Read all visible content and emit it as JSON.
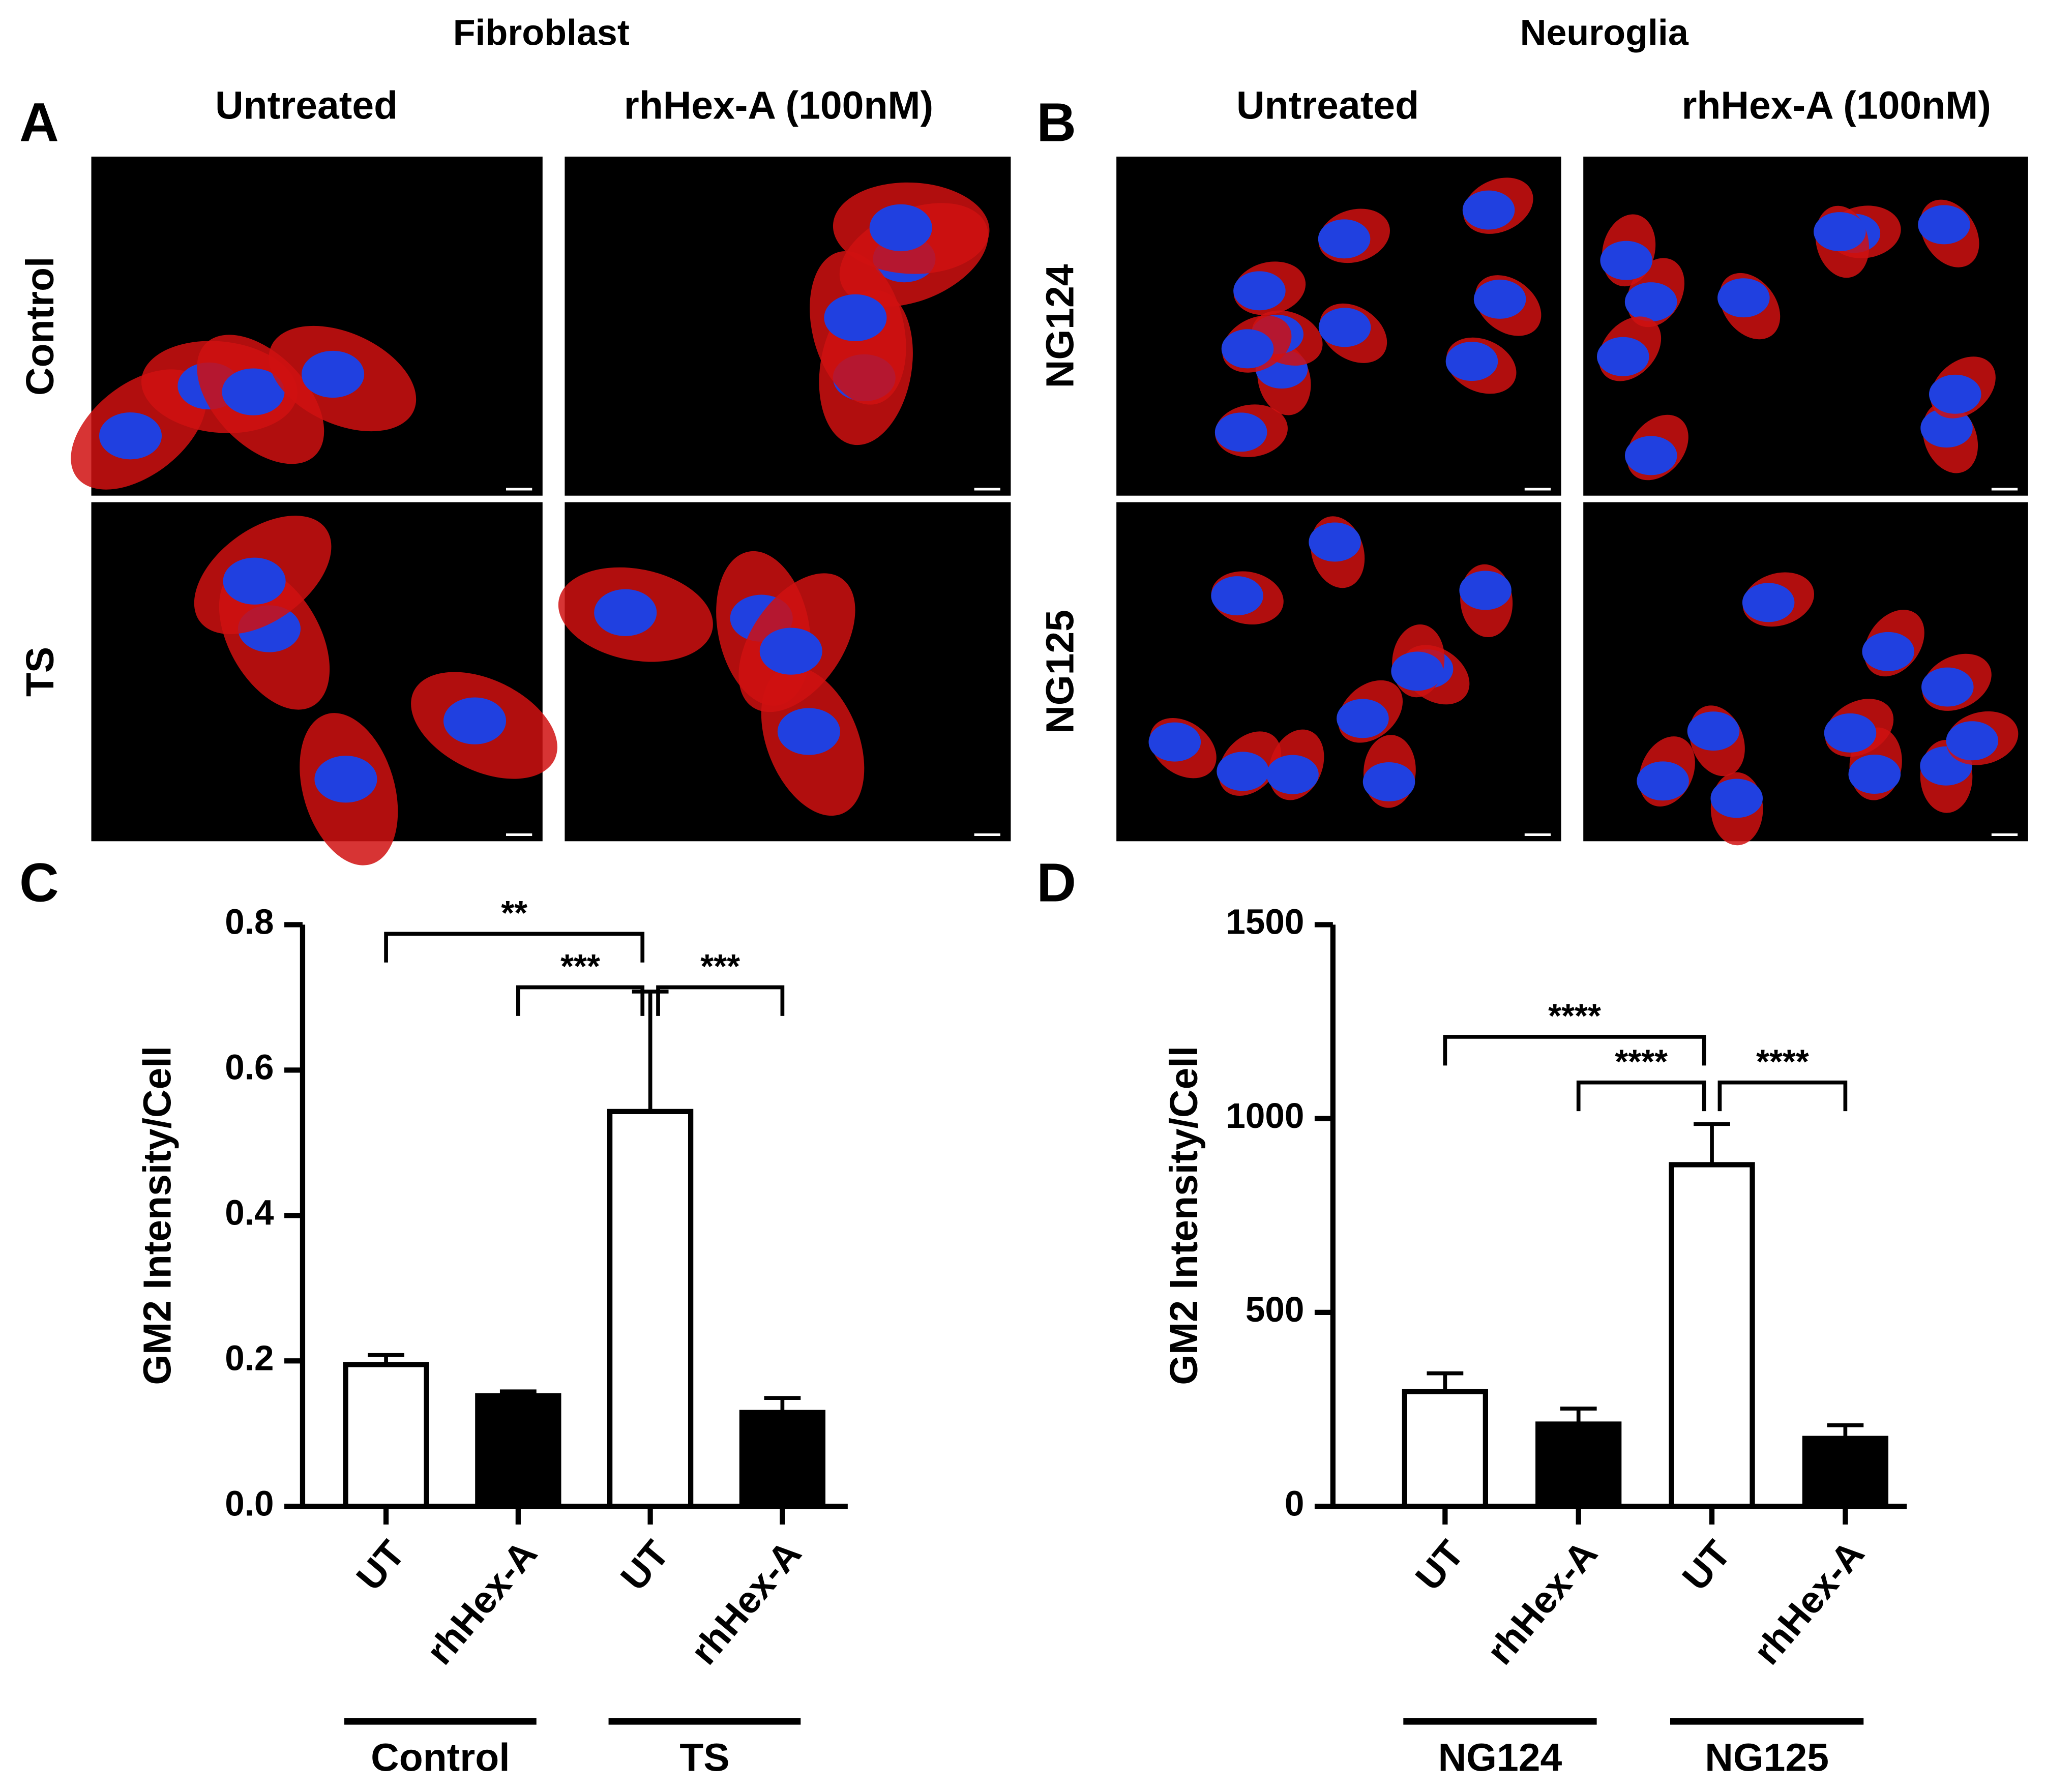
{
  "figure": {
    "col_groups": [
      "Fibroblast",
      "Neuroglia"
    ],
    "panel_letters": [
      "A",
      "B",
      "C",
      "D"
    ],
    "col_headers": [
      "Untreated",
      "rhHex-A (100nM)",
      "Untreated",
      "rhHex-A (100nM)"
    ],
    "row_labels": [
      "Control",
      "TS",
      "NG124",
      "NG125"
    ]
  },
  "chart_data": [
    {
      "type": "bar",
      "ylabel": "GM2 Intensity/Cell",
      "categories": [
        "UT",
        "rhHex-A",
        "UT",
        "rhHex-A"
      ],
      "values": [
        0.195,
        0.152,
        0.543,
        0.129
      ],
      "errors": [
        0.013,
        0.006,
        0.165,
        0.02
      ],
      "colors": [
        "#ffffff",
        "#000000",
        "#ffffff",
        "#000000"
      ],
      "groups": [
        "Control",
        "TS"
      ],
      "significance": [
        "**",
        "***",
        "***"
      ],
      "ylim": [
        0,
        0.8
      ],
      "yticks": [
        {
          "value": 0,
          "label": "0.0"
        },
        0.2,
        0.4,
        0.6,
        0.8
      ]
    },
    {
      "type": "bar",
      "ylabel": "GM2 Intensity/Cell",
      "categories": [
        "UT",
        "rhHex-A",
        "UT",
        "rhHex-A"
      ],
      "values": [
        296,
        212,
        881,
        175
      ],
      "errors": [
        47,
        40,
        105,
        34
      ],
      "colors": [
        "#ffffff",
        "#000000",
        "#ffffff",
        "#000000"
      ],
      "groups": [
        "NG124",
        "NG125"
      ],
      "significance": [
        "****",
        "****",
        "****"
      ],
      "ylim": [
        0,
        1500
      ],
      "yticks": [
        0,
        500,
        1000,
        1500
      ]
    }
  ]
}
